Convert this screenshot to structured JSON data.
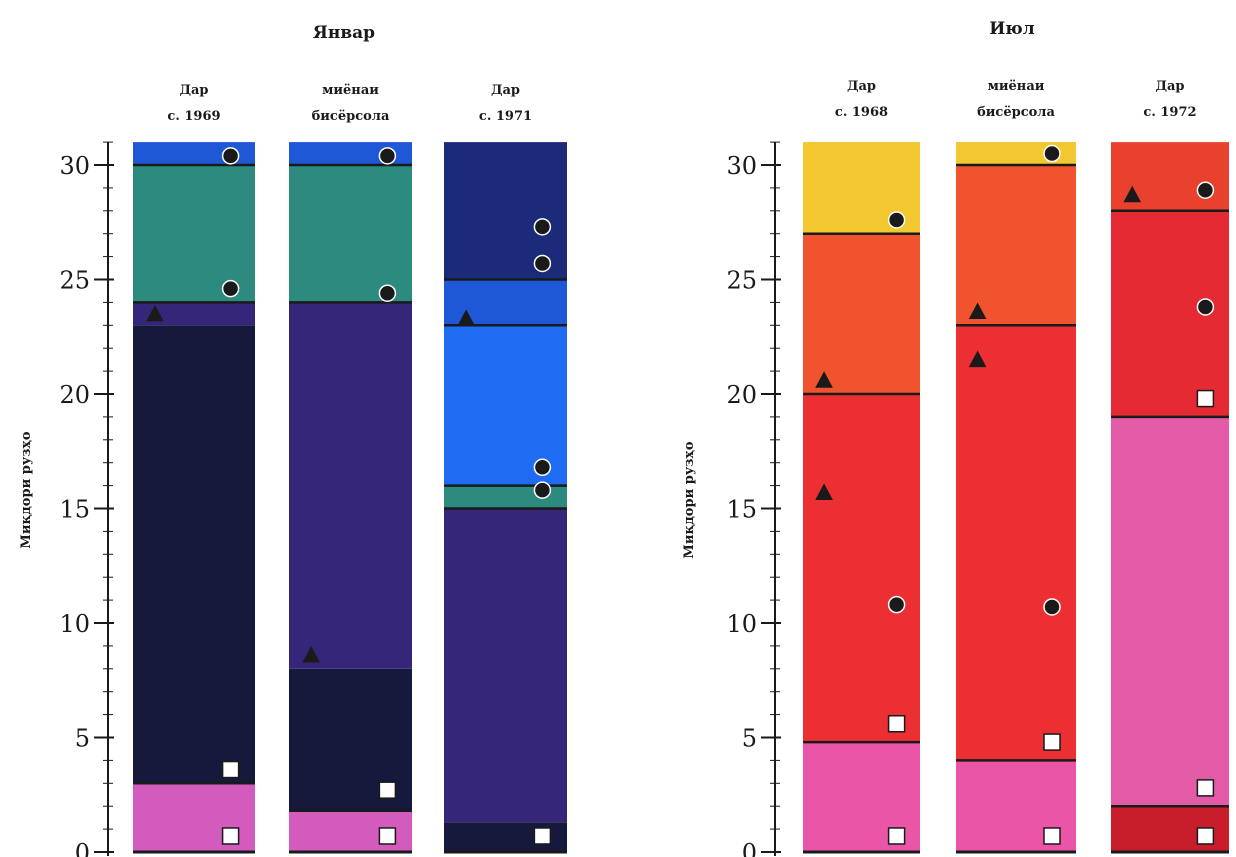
{
  "chart_data": {
    "type": "stacked-column",
    "ylim": [
      0,
      31
    ],
    "yticks": [
      0,
      5,
      10,
      15,
      20,
      25,
      30
    ],
    "panels": [
      {
        "title": "Январ",
        "ylabel": "Миқдори рузҳо",
        "columns": [
          {
            "label": [
              "Дар",
              "с. 1969"
            ],
            "segments": [
              {
                "from": 0,
                "to": 3,
                "color": "#d25bbd"
              },
              {
                "from": 3,
                "to": 23,
                "color": "#151a3d"
              },
              {
                "from": 23,
                "to": 24,
                "color": "#35267a"
              },
              {
                "from": 24,
                "to": 30,
                "color": "#2c8a7e"
              },
              {
                "from": 30,
                "to": 31,
                "color": "#1f58d6"
              }
            ],
            "boundaries": [
              3,
              24,
              30
            ],
            "markers": [
              {
                "y": 0.7,
                "symbol": "square"
              },
              {
                "y": 3.6,
                "symbol": "square"
              },
              {
                "y": 23.5,
                "symbol": "triangle"
              },
              {
                "y": 24.6,
                "symbol": "circle"
              },
              {
                "y": 30.4,
                "symbol": "circle"
              }
            ]
          },
          {
            "label": [
              "миёнаи",
              "бисёрсола"
            ],
            "segments": [
              {
                "from": 0,
                "to": 1.8,
                "color": "#d25bbd"
              },
              {
                "from": 1.8,
                "to": 8,
                "color": "#151a3d"
              },
              {
                "from": 8,
                "to": 24,
                "color": "#35267a"
              },
              {
                "from": 24,
                "to": 30,
                "color": "#2c8a7e"
              },
              {
                "from": 30,
                "to": 31,
                "color": "#1f58d6"
              }
            ],
            "boundaries": [
              1.8,
              24,
              30
            ],
            "markers": [
              {
                "y": 0.7,
                "symbol": "square"
              },
              {
                "y": 2.7,
                "symbol": "square"
              },
              {
                "y": 8.6,
                "symbol": "triangle"
              },
              {
                "y": 24.4,
                "symbol": "circle"
              },
              {
                "y": 30.4,
                "symbol": "circle"
              }
            ]
          },
          {
            "label": [
              "Дар",
              "с. 1971"
            ],
            "segments": [
              {
                "from": 0,
                "to": 1.3,
                "color": "#151a3d"
              },
              {
                "from": 1.3,
                "to": 15,
                "color": "#35267a"
              },
              {
                "from": 15,
                "to": 16,
                "color": "#2c8a7e"
              },
              {
                "from": 16,
                "to": 23,
                "color": "#1f6cf2"
              },
              {
                "from": 23,
                "to": 25,
                "color": "#1f58d6"
              },
              {
                "from": 25,
                "to": 31,
                "color": "#1c2a7a"
              }
            ],
            "boundaries": [
              15,
              16,
              23,
              25
            ],
            "markers": [
              {
                "y": 0.7,
                "symbol": "square"
              },
              {
                "y": 15.8,
                "symbol": "circle"
              },
              {
                "y": 16.8,
                "symbol": "circle"
              },
              {
                "y": 23.3,
                "symbol": "triangle"
              },
              {
                "y": 25.7,
                "symbol": "circle"
              },
              {
                "y": 27.3,
                "symbol": "circle"
              }
            ]
          }
        ]
      },
      {
        "title": "Июл",
        "ylabel": "Миқдори рузҳо",
        "columns": [
          {
            "label": [
              "Дар",
              "с. 1968"
            ],
            "segments": [
              {
                "from": 0,
                "to": 4.8,
                "color": "#ea55a7"
              },
              {
                "from": 4.8,
                "to": 20,
                "color": "#ec2f33"
              },
              {
                "from": 20,
                "to": 27,
                "color": "#f0532d"
              },
              {
                "from": 27,
                "to": 31,
                "color": "#f3c72f"
              }
            ],
            "boundaries": [
              4.8,
              20,
              27
            ],
            "markers": [
              {
                "y": 0.7,
                "symbol": "square"
              },
              {
                "y": 5.6,
                "symbol": "square"
              },
              {
                "y": 10.8,
                "symbol": "circle"
              },
              {
                "y": 15.7,
                "symbol": "triangle"
              },
              {
                "y": 20.6,
                "symbol": "triangle"
              },
              {
                "y": 27.6,
                "symbol": "circle"
              }
            ]
          },
          {
            "label": [
              "миёнаи",
              "бисёрсола"
            ],
            "segments": [
              {
                "from": 0,
                "to": 4,
                "color": "#ea55a7"
              },
              {
                "from": 4,
                "to": 23,
                "color": "#ec2f33"
              },
              {
                "from": 23,
                "to": 30,
                "color": "#f0532d"
              },
              {
                "from": 30,
                "to": 31,
                "color": "#f3c72f"
              }
            ],
            "boundaries": [
              4,
              23,
              30
            ],
            "markers": [
              {
                "y": 0.7,
                "symbol": "square"
              },
              {
                "y": 4.8,
                "symbol": "square"
              },
              {
                "y": 10.7,
                "symbol": "circle"
              },
              {
                "y": 21.5,
                "symbol": "triangle"
              },
              {
                "y": 23.6,
                "symbol": "triangle"
              },
              {
                "y": 30.5,
                "symbol": "circle"
              }
            ]
          },
          {
            "label": [
              "Дар",
              "с. 1972"
            ],
            "segments": [
              {
                "from": 0,
                "to": 2,
                "color": "#c81e2c"
              },
              {
                "from": 2,
                "to": 19,
                "color": "#e35aa6"
              },
              {
                "from": 19,
                "to": 28,
                "color": "#e62a33"
              },
              {
                "from": 28,
                "to": 31,
                "color": "#e8422e"
              }
            ],
            "boundaries": [
              2,
              19,
              28
            ],
            "markers": [
              {
                "y": 0.7,
                "symbol": "square"
              },
              {
                "y": 2.8,
                "symbol": "square"
              },
              {
                "y": 19.8,
                "symbol": "square"
              },
              {
                "y": 23.8,
                "symbol": "circle"
              },
              {
                "y": 28.7,
                "symbol": "triangle"
              },
              {
                "y": 28.9,
                "symbol": "circle"
              }
            ]
          }
        ]
      }
    ]
  }
}
